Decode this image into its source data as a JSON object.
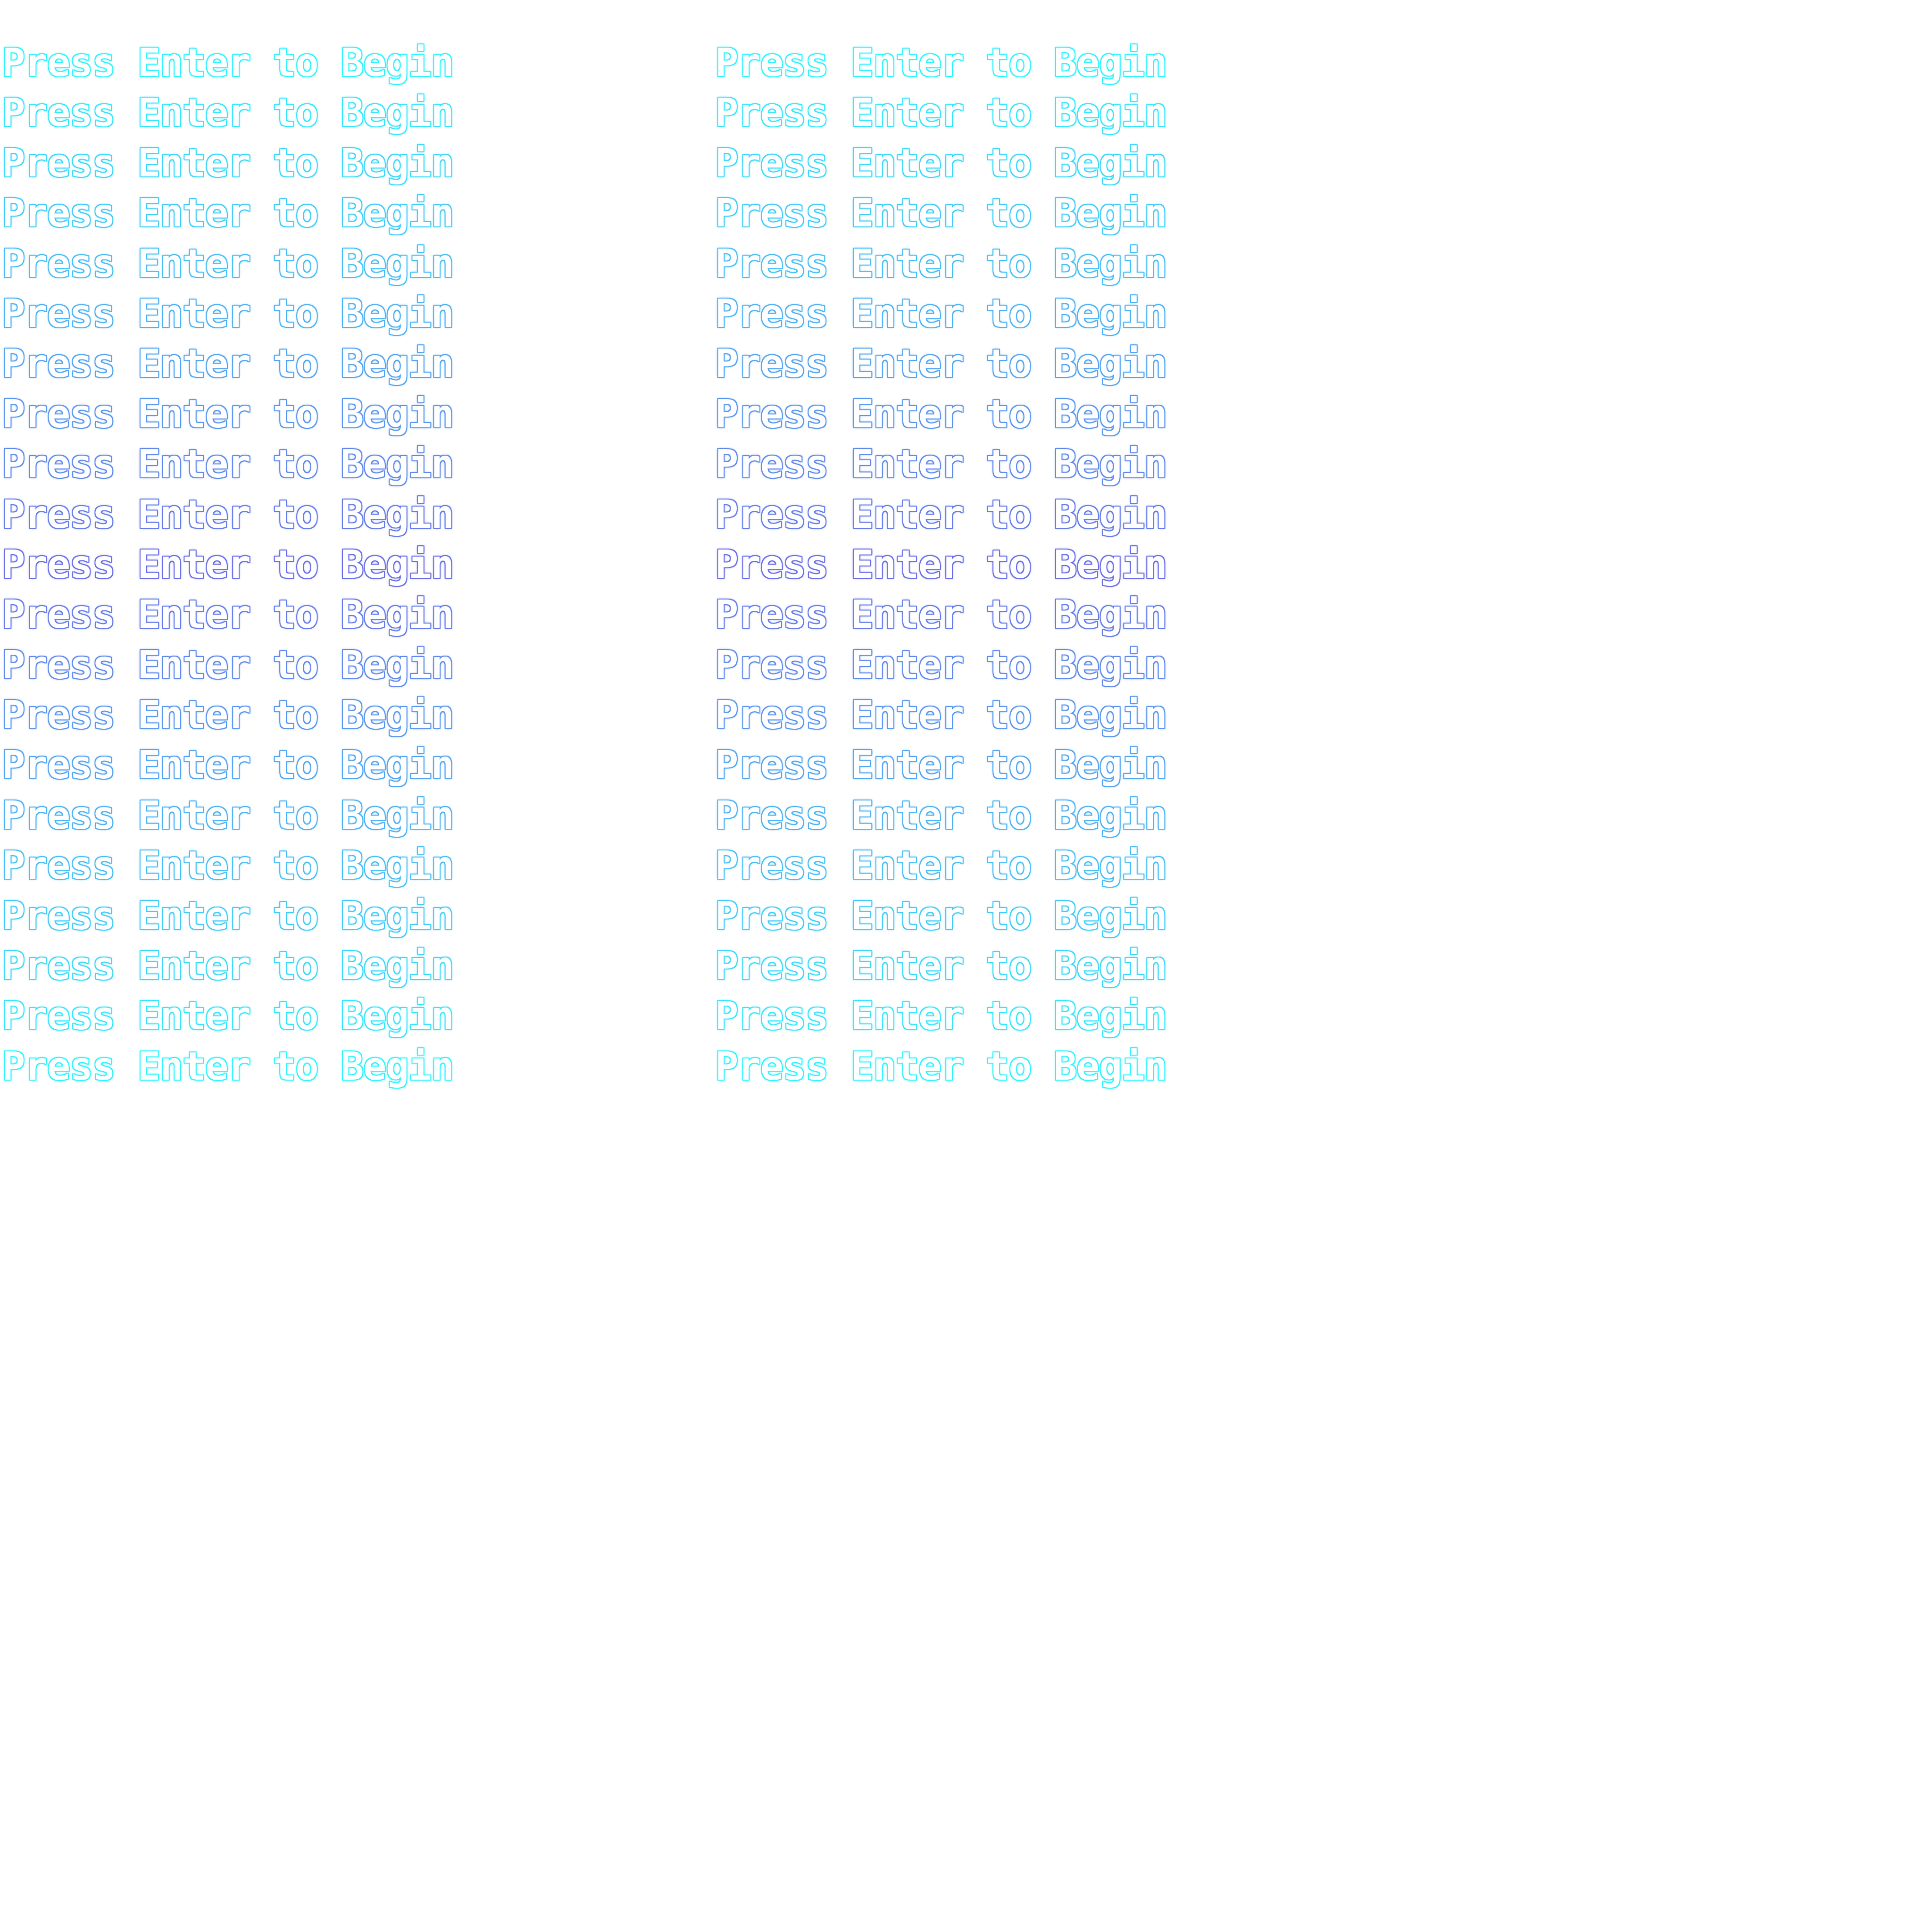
{
  "screen": {
    "prompt_text": "Press Enter to Begin",
    "columns": 2,
    "rows_per_column": 21,
    "gradient_colors": [
      "#2ef3ff",
      "#6a6ee6",
      "#2ef3ff"
    ]
  }
}
